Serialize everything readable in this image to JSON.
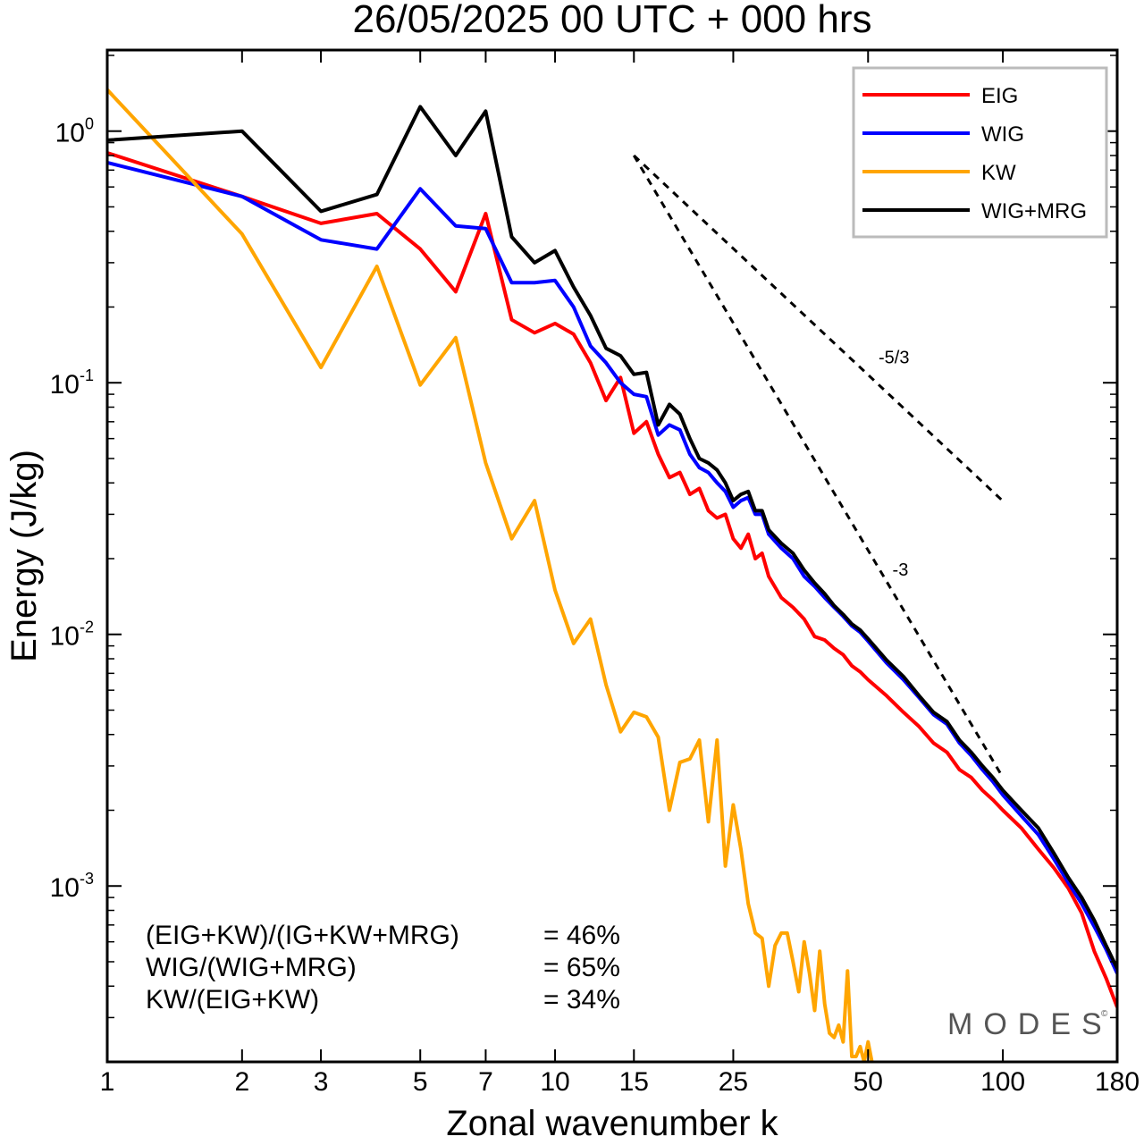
{
  "chart_data": {
    "type": "line",
    "title": "26/05/2025  00 UTC  + 000 hrs",
    "xlabel": "Zonal wavenumber k",
    "ylabel": "Energy (J/kg)",
    "xscale": "log",
    "yscale": "log",
    "xlim": [
      1,
      180
    ],
    "ylim": [
      0.0002,
      2.1
    ],
    "x_ticks": [
      1,
      2,
      3,
      5,
      7,
      10,
      15,
      25,
      50,
      100,
      180
    ],
    "x_tick_labels": [
      "1",
      "2",
      "3",
      "5",
      "7",
      "10",
      "15",
      "25",
      "50",
      "100",
      "180"
    ],
    "y_ticks": [
      {
        "value": 1,
        "base": "10",
        "exp": "0"
      },
      {
        "value": 0.1,
        "base": "10",
        "exp": "-1"
      },
      {
        "value": 0.01,
        "base": "10",
        "exp": "-2"
      },
      {
        "value": 0.001,
        "base": "10",
        "exp": "-3"
      }
    ],
    "legend_position": "top-right",
    "grid": false,
    "series": [
      {
        "name": "EIG",
        "color": "#ff0000",
        "points": [
          [
            1,
            0.82
          ],
          [
            2,
            0.55
          ],
          [
            3,
            0.43
          ],
          [
            4,
            0.47
          ],
          [
            5,
            0.34
          ],
          [
            6,
            0.23
          ],
          [
            7,
            0.47
          ],
          [
            8,
            0.178
          ],
          [
            9,
            0.158
          ],
          [
            10,
            0.172
          ],
          [
            11,
            0.156
          ],
          [
            12,
            0.12
          ],
          [
            13,
            0.085
          ],
          [
            14,
            0.105
          ],
          [
            15,
            0.063
          ],
          [
            16,
            0.07
          ],
          [
            17,
            0.052
          ],
          [
            18,
            0.042
          ],
          [
            19,
            0.044
          ],
          [
            20,
            0.036
          ],
          [
            21,
            0.038
          ],
          [
            22,
            0.031
          ],
          [
            23,
            0.029
          ],
          [
            24,
            0.03
          ],
          [
            25,
            0.024
          ],
          [
            26,
            0.022
          ],
          [
            27,
            0.025
          ],
          [
            28,
            0.02
          ],
          [
            29,
            0.021
          ],
          [
            30,
            0.017
          ],
          [
            32,
            0.014
          ],
          [
            34,
            0.0128
          ],
          [
            36,
            0.0115
          ],
          [
            38,
            0.0098
          ],
          [
            40,
            0.0095
          ],
          [
            42,
            0.0088
          ],
          [
            44,
            0.0083
          ],
          [
            46,
            0.0075
          ],
          [
            48,
            0.0071
          ],
          [
            50,
            0.0066
          ],
          [
            55,
            0.0057
          ],
          [
            60,
            0.0049
          ],
          [
            65,
            0.0043
          ],
          [
            70,
            0.0037
          ],
          [
            75,
            0.0034
          ],
          [
            80,
            0.0029
          ],
          [
            85,
            0.0027
          ],
          [
            90,
            0.0024
          ],
          [
            95,
            0.0022
          ],
          [
            100,
            0.002
          ],
          [
            110,
            0.0017
          ],
          [
            120,
            0.0014
          ],
          [
            130,
            0.00118
          ],
          [
            140,
            0.00098
          ],
          [
            150,
            0.00078
          ],
          [
            160,
            0.00055
          ],
          [
            170,
            0.00043
          ],
          [
            180,
            0.00033
          ]
        ]
      },
      {
        "name": "WIG",
        "color": "#0000ff",
        "points": [
          [
            1,
            0.75
          ],
          [
            2,
            0.55
          ],
          [
            3,
            0.37
          ],
          [
            4,
            0.34
          ],
          [
            5,
            0.59
          ],
          [
            6,
            0.42
          ],
          [
            7,
            0.41
          ],
          [
            8,
            0.25
          ],
          [
            9,
            0.25
          ],
          [
            10,
            0.255
          ],
          [
            11,
            0.2
          ],
          [
            12,
            0.14
          ],
          [
            13,
            0.12
          ],
          [
            14,
            0.1
          ],
          [
            15,
            0.09
          ],
          [
            16,
            0.088
          ],
          [
            17,
            0.062
          ],
          [
            18,
            0.068
          ],
          [
            19,
            0.065
          ],
          [
            20,
            0.052
          ],
          [
            21,
            0.046
          ],
          [
            22,
            0.044
          ],
          [
            23,
            0.04
          ],
          [
            24,
            0.037
          ],
          [
            25,
            0.032
          ],
          [
            26,
            0.034
          ],
          [
            27,
            0.035
          ],
          [
            28,
            0.03
          ],
          [
            29,
            0.03
          ],
          [
            30,
            0.025
          ],
          [
            32,
            0.022
          ],
          [
            34,
            0.02
          ],
          [
            36,
            0.017
          ],
          [
            38,
            0.0155
          ],
          [
            40,
            0.014
          ],
          [
            42,
            0.0128
          ],
          [
            44,
            0.0118
          ],
          [
            46,
            0.0108
          ],
          [
            48,
            0.0102
          ],
          [
            50,
            0.0094
          ],
          [
            55,
            0.0077
          ],
          [
            60,
            0.0066
          ],
          [
            65,
            0.0056
          ],
          [
            70,
            0.0048
          ],
          [
            75,
            0.0044
          ],
          [
            80,
            0.0037
          ],
          [
            85,
            0.0033
          ],
          [
            90,
            0.0029
          ],
          [
            95,
            0.0026
          ],
          [
            100,
            0.0023
          ],
          [
            110,
            0.0019
          ],
          [
            120,
            0.0016
          ],
          [
            130,
            0.00128
          ],
          [
            140,
            0.00103
          ],
          [
            150,
            0.00085
          ],
          [
            160,
            0.00069
          ],
          [
            170,
            0.00056
          ],
          [
            180,
            0.00045
          ]
        ]
      },
      {
        "name": "KW",
        "color": "#ffa500",
        "points": [
          [
            1,
            1.46
          ],
          [
            2,
            0.39
          ],
          [
            3,
            0.115
          ],
          [
            4,
            0.29
          ],
          [
            5,
            0.098
          ],
          [
            6,
            0.151
          ],
          [
            7,
            0.048
          ],
          [
            8,
            0.024
          ],
          [
            9,
            0.034
          ],
          [
            10,
            0.015
          ],
          [
            11,
            0.0092
          ],
          [
            12,
            0.0115
          ],
          [
            13,
            0.0063
          ],
          [
            14,
            0.0041
          ],
          [
            15,
            0.0049
          ],
          [
            16,
            0.0047
          ],
          [
            17,
            0.0039
          ],
          [
            18,
            0.002
          ],
          [
            19,
            0.0031
          ],
          [
            20,
            0.0032
          ],
          [
            21,
            0.0038
          ],
          [
            22,
            0.0018
          ],
          [
            23,
            0.0038
          ],
          [
            24,
            0.0012
          ],
          [
            25,
            0.0021
          ],
          [
            26,
            0.0014
          ],
          [
            27,
            0.00085
          ],
          [
            28,
            0.00065
          ],
          [
            29,
            0.00062
          ],
          [
            30,
            0.0004
          ],
          [
            31,
            0.00058
          ],
          [
            32,
            0.00065
          ],
          [
            33,
            0.00065
          ],
          [
            34,
            0.0005
          ],
          [
            35,
            0.00038
          ],
          [
            36,
            0.0006
          ],
          [
            37,
            0.00045
          ],
          [
            38,
            0.00032
          ],
          [
            39,
            0.00055
          ],
          [
            40,
            0.00034
          ],
          [
            41,
            0.00026
          ],
          [
            42,
            0.00025
          ],
          [
            43,
            0.00028
          ],
          [
            44,
            0.00024
          ],
          [
            45,
            0.00046
          ],
          [
            46,
            0.00021
          ],
          [
            47,
            0.00021
          ],
          [
            48,
            0.00023
          ],
          [
            49,
            0.0002
          ],
          [
            50,
            0.00024
          ],
          [
            51,
            0.0002
          ]
        ]
      },
      {
        "name": "WIG+MRG",
        "color": "#000000",
        "points": [
          [
            1,
            0.92
          ],
          [
            2,
            1.0
          ],
          [
            3,
            0.48
          ],
          [
            4,
            0.56
          ],
          [
            5,
            1.25
          ],
          [
            6,
            0.8
          ],
          [
            7,
            1.2
          ],
          [
            8,
            0.38
          ],
          [
            9,
            0.3
          ],
          [
            10,
            0.335
          ],
          [
            11,
            0.24
          ],
          [
            12,
            0.185
          ],
          [
            13,
            0.137
          ],
          [
            14,
            0.128
          ],
          [
            15,
            0.108
          ],
          [
            16,
            0.11
          ],
          [
            17,
            0.068
          ],
          [
            18,
            0.082
          ],
          [
            19,
            0.075
          ],
          [
            20,
            0.06
          ],
          [
            21,
            0.05
          ],
          [
            22,
            0.048
          ],
          [
            23,
            0.045
          ],
          [
            24,
            0.04
          ],
          [
            25,
            0.034
          ],
          [
            26,
            0.036
          ],
          [
            27,
            0.037
          ],
          [
            28,
            0.031
          ],
          [
            29,
            0.031
          ],
          [
            30,
            0.026
          ],
          [
            32,
            0.023
          ],
          [
            34,
            0.021
          ],
          [
            36,
            0.018
          ],
          [
            38,
            0.016
          ],
          [
            40,
            0.0145
          ],
          [
            42,
            0.013
          ],
          [
            44,
            0.012
          ],
          [
            46,
            0.011
          ],
          [
            48,
            0.0104
          ],
          [
            50,
            0.0096
          ],
          [
            55,
            0.0079
          ],
          [
            60,
            0.0068
          ],
          [
            65,
            0.0057
          ],
          [
            70,
            0.0049
          ],
          [
            75,
            0.0045
          ],
          [
            80,
            0.0038
          ],
          [
            85,
            0.0034
          ],
          [
            90,
            0.003
          ],
          [
            95,
            0.0027
          ],
          [
            100,
            0.0024
          ],
          [
            110,
            0.002
          ],
          [
            120,
            0.0017
          ],
          [
            130,
            0.00135
          ],
          [
            140,
            0.00108
          ],
          [
            150,
            0.0009
          ],
          [
            160,
            0.00073
          ],
          [
            170,
            0.00058
          ],
          [
            180,
            0.00047
          ]
        ]
      }
    ],
    "reference_lines": [
      {
        "label": "-5/3",
        "slope": -1.6667,
        "x_start": 15,
        "x_end": 100,
        "y_start": 0.8
      },
      {
        "label": "-3",
        "slope": -3,
        "x_start": 15,
        "x_end": 100,
        "y_start": 0.8
      }
    ],
    "annotations": [
      {
        "label": "(EIG+KW)/(IG+KW+MRG)",
        "value": "= 46%"
      },
      {
        "label": "WIG/(WIG+MRG)",
        "value": "= 65%"
      },
      {
        "label": "KW/(EIG+KW)",
        "value": "= 34%"
      }
    ]
  },
  "brand": {
    "name": "MODES",
    "copyright": "©"
  }
}
